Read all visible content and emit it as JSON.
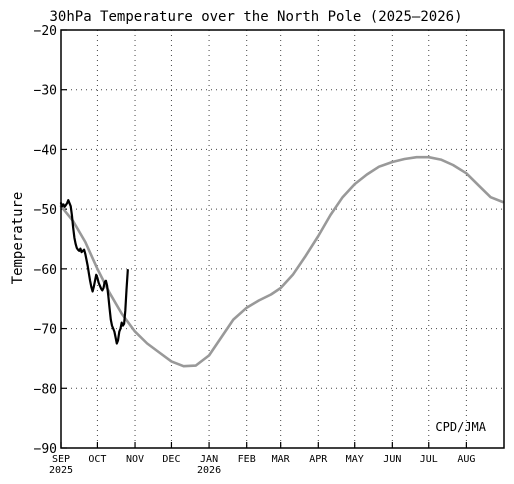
{
  "chart_data": {
    "type": "line",
    "title": "30hPa Temperature over the North Pole (2025–2026)",
    "xlabel": "",
    "ylabel": "Temperature",
    "ylim": [
      -90,
      -20
    ],
    "yticks": [
      -90,
      -80,
      -70,
      -60,
      -50,
      -40,
      -30,
      -20
    ],
    "ytick_labels": [
      "−90",
      "−80",
      "−70",
      "−60",
      "−50",
      "−40",
      "−30",
      "−20"
    ],
    "xlim": [
      "2025-09-01",
      "2026-09-01"
    ],
    "x_ticks": [
      {
        "date": "2025-09-01",
        "label": "SEP",
        "sub": "2025"
      },
      {
        "date": "2025-10-01",
        "label": "OCT",
        "sub": ""
      },
      {
        "date": "2025-11-01",
        "label": "NOV",
        "sub": ""
      },
      {
        "date": "2025-12-01",
        "label": "DEC",
        "sub": ""
      },
      {
        "date": "2026-01-01",
        "label": "JAN",
        "sub": "2026"
      },
      {
        "date": "2026-02-01",
        "label": "FEB",
        "sub": ""
      },
      {
        "date": "2026-03-01",
        "label": "MAR",
        "sub": ""
      },
      {
        "date": "2026-04-01",
        "label": "APR",
        "sub": ""
      },
      {
        "date": "2026-05-01",
        "label": "MAY",
        "sub": ""
      },
      {
        "date": "2026-06-01",
        "label": "JUN",
        "sub": ""
      },
      {
        "date": "2026-07-01",
        "label": "JUL",
        "sub": ""
      },
      {
        "date": "2026-08-01",
        "label": "AUG",
        "sub": ""
      }
    ],
    "grid": true,
    "annotation": "CPD/JMA",
    "series": [
      {
        "color": "#999999",
        "points": [
          [
            "2025-09-01",
            -49.5
          ],
          [
            "2025-09-11",
            -52.0
          ],
          [
            "2025-09-21",
            -55.5
          ],
          [
            "2025-10-01",
            -60.0
          ],
          [
            "2025-10-11",
            -64.0
          ],
          [
            "2025-10-21",
            -67.5
          ],
          [
            "2025-11-01",
            -70.5
          ],
          [
            "2025-11-11",
            -72.5
          ],
          [
            "2025-11-21",
            -74.0
          ],
          [
            "2025-12-01",
            -75.5
          ],
          [
            "2025-12-11",
            -76.3
          ],
          [
            "2025-12-21",
            -76.2
          ],
          [
            "2026-01-01",
            -74.5
          ],
          [
            "2026-01-11",
            -71.5
          ],
          [
            "2026-01-21",
            -68.5
          ],
          [
            "2026-02-01",
            -66.5
          ],
          [
            "2026-02-11",
            -65.3
          ],
          [
            "2026-02-21",
            -64.3
          ],
          [
            "2026-03-01",
            -63.2
          ],
          [
            "2026-03-11",
            -61.0
          ],
          [
            "2026-03-21",
            -58.0
          ],
          [
            "2026-04-01",
            -54.5
          ],
          [
            "2026-04-11",
            -51.0
          ],
          [
            "2026-04-21",
            -48.0
          ],
          [
            "2026-05-01",
            -45.8
          ],
          [
            "2026-05-11",
            -44.2
          ],
          [
            "2026-05-21",
            -42.9
          ],
          [
            "2026-06-01",
            -42.1
          ],
          [
            "2026-06-11",
            -41.6
          ],
          [
            "2026-06-21",
            -41.3
          ],
          [
            "2026-07-01",
            -41.3
          ],
          [
            "2026-07-11",
            -41.7
          ],
          [
            "2026-07-21",
            -42.6
          ],
          [
            "2026-08-01",
            -44.0
          ],
          [
            "2026-08-11",
            -46.0
          ],
          [
            "2026-08-21",
            -48.0
          ],
          [
            "2026-08-31",
            -48.8
          ]
        ]
      },
      {
        "color": "#000000",
        "points": [
          [
            "2025-09-01",
            -49.0
          ],
          [
            "2025-09-02",
            -49.5
          ],
          [
            "2025-09-03",
            -49.2
          ],
          [
            "2025-09-04",
            -49.6
          ],
          [
            "2025-09-05",
            -49.3
          ],
          [
            "2025-09-06",
            -49.0
          ],
          [
            "2025-09-07",
            -48.5
          ],
          [
            "2025-09-08",
            -49.0
          ],
          [
            "2025-09-09",
            -49.5
          ],
          [
            "2025-09-10",
            -51.0
          ],
          [
            "2025-09-11",
            -53.0
          ],
          [
            "2025-09-12",
            -54.8
          ],
          [
            "2025-09-13",
            -55.8
          ],
          [
            "2025-09-14",
            -56.5
          ],
          [
            "2025-09-15",
            -56.8
          ],
          [
            "2025-09-16",
            -57.0
          ],
          [
            "2025-09-17",
            -56.6
          ],
          [
            "2025-09-18",
            -57.2
          ],
          [
            "2025-09-19",
            -57.0
          ],
          [
            "2025-09-20",
            -56.8
          ],
          [
            "2025-09-21",
            -57.5
          ],
          [
            "2025-09-22",
            -58.5
          ],
          [
            "2025-09-23",
            -59.5
          ],
          [
            "2025-09-24",
            -60.8
          ],
          [
            "2025-09-25",
            -62.0
          ],
          [
            "2025-09-26",
            -63.0
          ],
          [
            "2025-09-27",
            -63.8
          ],
          [
            "2025-09-28",
            -63.0
          ],
          [
            "2025-09-29",
            -62.0
          ],
          [
            "2025-09-30",
            -61.0
          ],
          [
            "2025-10-01",
            -61.5
          ],
          [
            "2025-10-02",
            -62.3
          ],
          [
            "2025-10-03",
            -62.8
          ],
          [
            "2025-10-04",
            -63.3
          ],
          [
            "2025-10-05",
            -63.6
          ],
          [
            "2025-10-06",
            -63.2
          ],
          [
            "2025-10-07",
            -62.2
          ],
          [
            "2025-10-08",
            -62.0
          ],
          [
            "2025-10-09",
            -62.8
          ],
          [
            "2025-10-10",
            -64.5
          ],
          [
            "2025-10-11",
            -66.5
          ],
          [
            "2025-10-12",
            -68.5
          ],
          [
            "2025-10-13",
            -69.5
          ],
          [
            "2025-10-14",
            -70.0
          ],
          [
            "2025-10-15",
            -70.5
          ],
          [
            "2025-10-16",
            -71.5
          ],
          [
            "2025-10-17",
            -72.5
          ],
          [
            "2025-10-18",
            -72.0
          ],
          [
            "2025-10-19",
            -70.5
          ],
          [
            "2025-10-20",
            -70.0
          ],
          [
            "2025-10-21",
            -69.0
          ],
          [
            "2025-10-22",
            -69.5
          ],
          [
            "2025-10-23",
            -69.2
          ],
          [
            "2025-10-24",
            -67.0
          ],
          [
            "2025-10-25",
            -63.5
          ],
          [
            "2025-10-26",
            -60.2
          ]
        ]
      }
    ]
  }
}
